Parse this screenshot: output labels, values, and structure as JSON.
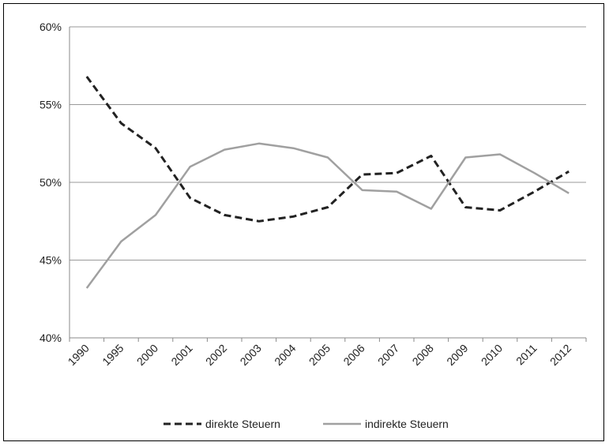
{
  "chart_data": {
    "type": "line",
    "title": "",
    "xlabel": "",
    "ylabel": "",
    "categories": [
      "1990",
      "1995",
      "2000",
      "2001",
      "2002",
      "2003",
      "2004",
      "2005",
      "2006",
      "2007",
      "2008",
      "2009",
      "2010",
      "2011",
      "2012"
    ],
    "y_tick_labels": [
      "40%",
      "45%",
      "50%",
      "55%",
      "60%"
    ],
    "ylim": [
      40,
      60
    ],
    "y_unit": "%",
    "grid": "horizontal",
    "legend_position": "bottom",
    "series": [
      {
        "name": "direkte Steuern",
        "style": "dashed",
        "color": "#222222",
        "values": [
          56.8,
          53.8,
          52.2,
          49.0,
          47.9,
          47.5,
          47.8,
          48.4,
          50.5,
          50.6,
          51.7,
          48.4,
          48.2,
          49.4,
          50.7
        ]
      },
      {
        "name": "indirekte Steuern",
        "style": "solid",
        "color": "#a0a0a0",
        "values": [
          43.2,
          46.2,
          47.9,
          51.0,
          52.1,
          52.5,
          52.2,
          51.6,
          49.5,
          49.4,
          48.3,
          51.6,
          51.8,
          50.6,
          49.3
        ]
      }
    ]
  }
}
